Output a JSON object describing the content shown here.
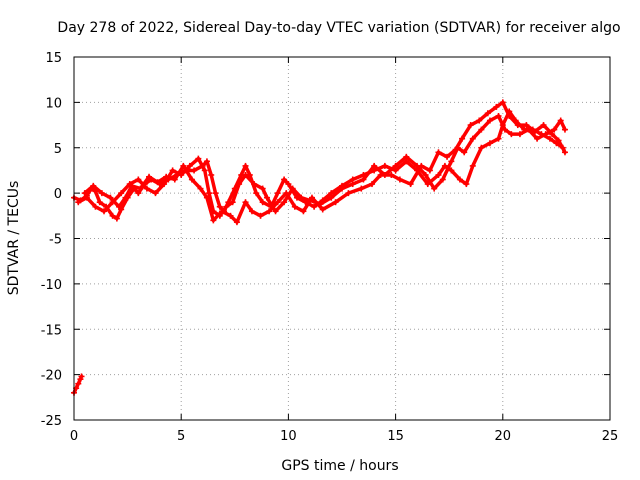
{
  "chart_data": {
    "type": "scatter",
    "title": "Day 278 of 2022, Sidereal Day-to-day VTEC variation (SDTVAR) for receiver algo",
    "xlabel": "GPS time / hours",
    "ylabel": "SDTVAR / TECUs",
    "xlim": [
      0,
      25
    ],
    "ylim": [
      -25,
      15
    ],
    "xticks": [
      0,
      5,
      10,
      15,
      20,
      25
    ],
    "yticks": [
      -25,
      -20,
      -15,
      -10,
      -5,
      0,
      5,
      10,
      15
    ],
    "grid": true,
    "marker": "+",
    "series": [
      {
        "name": "SDTVAR",
        "color": "#ff0000",
        "segments": [
          [
            [
              0.0,
              -22.0
            ],
            [
              0.1,
              -21.5
            ],
            [
              0.2,
              -21.0
            ],
            [
              0.3,
              -20.5
            ],
            [
              0.35,
              -20.2
            ]
          ],
          [
            [
              0.0,
              -0.5
            ],
            [
              0.3,
              -0.8
            ],
            [
              0.6,
              -0.3
            ],
            [
              0.8,
              0.5
            ],
            [
              1.0,
              0.2
            ],
            [
              1.2,
              -1.0
            ],
            [
              1.5,
              -1.5
            ],
            [
              1.8,
              -2.5
            ],
            [
              2.0,
              -2.8
            ],
            [
              2.2,
              -1.8
            ],
            [
              2.5,
              -0.5
            ],
            [
              2.8,
              0.5
            ],
            [
              3.0,
              0.0
            ],
            [
              3.3,
              1.0
            ],
            [
              3.6,
              1.5
            ],
            [
              4.0,
              1.0
            ],
            [
              4.4,
              1.5
            ],
            [
              4.8,
              2.0
            ],
            [
              5.2,
              2.5
            ],
            [
              5.6,
              2.5
            ],
            [
              6.0,
              3.0
            ],
            [
              6.2,
              3.5
            ],
            [
              6.4,
              2.0
            ],
            [
              6.6,
              0.0
            ],
            [
              6.8,
              -1.5
            ],
            [
              7.0,
              -2.0
            ],
            [
              7.2,
              -1.0
            ],
            [
              7.5,
              0.5
            ],
            [
              7.8,
              2.0
            ],
            [
              8.0,
              3.0
            ],
            [
              8.2,
              2.0
            ],
            [
              8.5,
              0.0
            ],
            [
              8.8,
              -1.0
            ],
            [
              9.2,
              -1.5
            ],
            [
              9.5,
              0.0
            ],
            [
              9.8,
              1.5
            ],
            [
              10.0,
              1.0
            ],
            [
              10.4,
              -0.5
            ],
            [
              10.8,
              -1.0
            ],
            [
              11.2,
              -1.5
            ],
            [
              11.6,
              -0.8
            ],
            [
              12.0,
              0.0
            ],
            [
              12.5,
              0.8
            ],
            [
              13.0,
              1.5
            ],
            [
              13.5,
              2.0
            ],
            [
              14.0,
              2.5
            ],
            [
              14.5,
              3.0
            ],
            [
              15.0,
              2.5
            ],
            [
              15.5,
              3.5
            ],
            [
              16.0,
              2.5
            ],
            [
              16.5,
              1.0
            ],
            [
              17.0,
              2.0
            ],
            [
              17.3,
              3.0
            ],
            [
              17.6,
              2.5
            ],
            [
              18.0,
              1.5
            ],
            [
              18.3,
              1.0
            ],
            [
              18.6,
              3.0
            ],
            [
              19.0,
              5.0
            ],
            [
              19.4,
              5.5
            ],
            [
              19.8,
              6.0
            ],
            [
              20.0,
              7.5
            ],
            [
              20.3,
              9.0
            ],
            [
              20.6,
              8.0
            ],
            [
              21.0,
              7.0
            ],
            [
              21.4,
              7.0
            ],
            [
              21.8,
              6.5
            ],
            [
              22.2,
              6.0
            ],
            [
              22.5,
              5.5
            ],
            [
              22.8,
              5.0
            ]
          ],
          [
            [
              0.2,
              -1.0
            ],
            [
              0.6,
              -0.5
            ],
            [
              1.0,
              -1.5
            ],
            [
              1.4,
              -2.0
            ],
            [
              1.8,
              -1.0
            ],
            [
              2.2,
              0.0
            ],
            [
              2.6,
              1.0
            ],
            [
              3.0,
              1.5
            ],
            [
              3.4,
              0.5
            ],
            [
              3.8,
              0.0
            ],
            [
              4.2,
              1.0
            ],
            [
              4.6,
              2.5
            ],
            [
              5.0,
              2.0
            ],
            [
              5.4,
              3.0
            ],
            [
              5.8,
              3.8
            ],
            [
              6.1,
              2.5
            ],
            [
              6.3,
              0.0
            ],
            [
              6.5,
              -2.0
            ],
            [
              6.8,
              -2.5
            ],
            [
              7.1,
              -1.5
            ],
            [
              7.4,
              -1.0
            ],
            [
              7.7,
              1.0
            ],
            [
              8.0,
              2.0
            ],
            [
              8.4,
              1.0
            ],
            [
              8.8,
              0.5
            ],
            [
              9.0,
              -0.5
            ],
            [
              9.4,
              -2.0
            ],
            [
              9.8,
              -1.0
            ],
            [
              10.2,
              0.5
            ],
            [
              10.6,
              -0.5
            ],
            [
              11.0,
              -0.8
            ],
            [
              11.5,
              -1.2
            ],
            [
              12.0,
              -0.5
            ],
            [
              12.5,
              0.5
            ],
            [
              13.0,
              1.0
            ],
            [
              13.5,
              1.5
            ],
            [
              14.0,
              3.0
            ],
            [
              14.5,
              2.0
            ],
            [
              15.0,
              3.0
            ],
            [
              15.5,
              4.0
            ],
            [
              16.0,
              3.0
            ],
            [
              16.4,
              2.0
            ],
            [
              16.8,
              0.5
            ],
            [
              17.2,
              1.5
            ],
            [
              17.6,
              3.5
            ],
            [
              17.9,
              5.0
            ],
            [
              18.2,
              4.5
            ],
            [
              18.6,
              6.0
            ],
            [
              19.0,
              7.0
            ],
            [
              19.4,
              8.0
            ],
            [
              19.8,
              8.5
            ],
            [
              20.1,
              7.0
            ],
            [
              20.4,
              6.5
            ],
            [
              20.8,
              6.5
            ],
            [
              21.2,
              7.0
            ],
            [
              21.6,
              6.0
            ],
            [
              22.0,
              6.5
            ],
            [
              22.4,
              7.0
            ],
            [
              22.7,
              8.0
            ],
            [
              22.9,
              7.0
            ]
          ],
          [
            [
              0.5,
              0.0
            ],
            [
              0.9,
              0.8
            ],
            [
              1.3,
              0.0
            ],
            [
              1.7,
              -0.5
            ],
            [
              2.1,
              -1.5
            ],
            [
              2.4,
              -0.5
            ],
            [
              2.7,
              0.8
            ],
            [
              3.1,
              0.5
            ],
            [
              3.5,
              1.8
            ],
            [
              3.9,
              1.2
            ],
            [
              4.3,
              1.8
            ],
            [
              4.7,
              1.5
            ],
            [
              5.1,
              3.0
            ],
            [
              5.5,
              1.5
            ],
            [
              5.9,
              0.5
            ],
            [
              6.2,
              -0.5
            ],
            [
              6.5,
              -3.0
            ],
            [
              6.9,
              -2.0
            ],
            [
              7.3,
              -2.5
            ],
            [
              7.6,
              -3.2
            ],
            [
              8.0,
              -1.0
            ],
            [
              8.3,
              -2.0
            ],
            [
              8.7,
              -2.5
            ],
            [
              9.1,
              -2.0
            ],
            [
              9.5,
              -1.0
            ],
            [
              9.9,
              0.0
            ],
            [
              10.3,
              -1.5
            ],
            [
              10.7,
              -2.0
            ],
            [
              11.1,
              -0.5
            ],
            [
              11.6,
              -1.8
            ],
            [
              12.2,
              -1.0
            ],
            [
              12.8,
              0.0
            ],
            [
              13.4,
              0.5
            ],
            [
              13.9,
              1.0
            ],
            [
              14.3,
              2.0
            ],
            [
              14.8,
              2.0
            ],
            [
              15.2,
              1.5
            ],
            [
              15.7,
              1.0
            ],
            [
              16.2,
              3.0
            ],
            [
              16.6,
              2.5
            ],
            [
              17.0,
              4.5
            ],
            [
              17.4,
              4.0
            ],
            [
              17.8,
              4.8
            ],
            [
              18.1,
              6.0
            ],
            [
              18.5,
              7.5
            ],
            [
              18.9,
              8.0
            ],
            [
              19.3,
              8.8
            ],
            [
              19.7,
              9.5
            ],
            [
              20.0,
              10.0
            ],
            [
              20.3,
              8.5
            ],
            [
              20.7,
              7.5
            ],
            [
              21.1,
              7.5
            ],
            [
              21.5,
              6.8
            ],
            [
              21.9,
              7.5
            ],
            [
              22.3,
              6.5
            ],
            [
              22.6,
              5.8
            ],
            [
              22.9,
              4.5
            ]
          ]
        ]
      }
    ]
  }
}
